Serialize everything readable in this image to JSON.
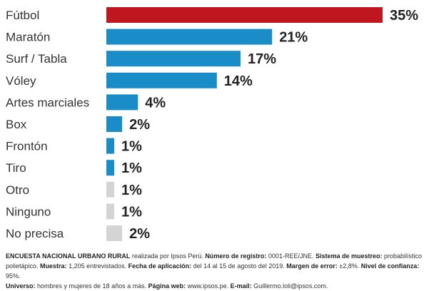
{
  "chart_data": {
    "type": "bar",
    "orientation": "horizontal",
    "categories": [
      "Fútbol",
      "Maratón",
      "Surf / Tabla",
      "Vóley",
      "Artes marciales",
      "Box",
      "Frontón",
      "Tiro",
      "Otro",
      "Ninguno",
      "No precisa"
    ],
    "values": [
      35,
      21,
      17,
      14,
      4,
      2,
      1,
      1,
      1,
      1,
      2
    ],
    "value_labels": [
      "35%",
      "21%",
      "17%",
      "14%",
      "4%",
      "2%",
      "1%",
      "1%",
      "1%",
      "1%",
      "2%"
    ],
    "bar_colors": [
      "#c0161f",
      "#1a8cc8",
      "#1a8cc8",
      "#1a8cc8",
      "#1a8cc8",
      "#1a8cc8",
      "#1a8cc8",
      "#1a8cc8",
      "#d4d4d4",
      "#d4d4d4",
      "#d4d4d4"
    ],
    "xlim": [
      0,
      35
    ],
    "grid": false,
    "title": "",
    "xlabel": "",
    "ylabel": ""
  },
  "footnote": {
    "survey_label": "ENCUESTA NACIONAL URBANO RURAL",
    "survey_text": " realizada por Ipsos Perú. ",
    "registro_label": "Número de registro:",
    "registro_value": " 0001-REE/JNE. ",
    "sistema_label": "Sistema de muestreo:",
    "sistema_value": " probabilístico polietápico. ",
    "muestra_label": "Muestra:",
    "muestra_value": " 1,205 entrevistados. ",
    "fecha_label": "Fecha de aplicación:",
    "fecha_value": " del 14 al 15 de agosto del 2019. ",
    "margen_label": "Margen de error:",
    "margen_value": " ±2,8%. ",
    "nivel_label": "Nivel de confianza:",
    "nivel_value": " 95%. ",
    "universo_label": "Universo:",
    "universo_value": " hombres y mujeres de 18 años a más. ",
    "web_label": "Página web:",
    "web_value": " www.ipsos.pe. ",
    "email_label": "E-mail:",
    "email_value": " Guillermo.loli@ipsos.com."
  }
}
